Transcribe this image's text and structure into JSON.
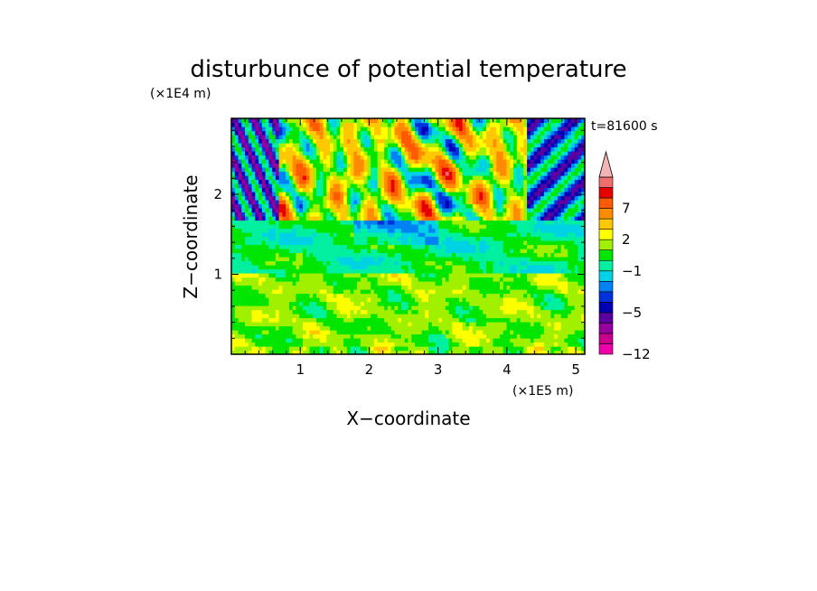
{
  "chart_data": {
    "type": "heatmap",
    "title": "disturbunce of potential temperature",
    "xlabel": "X−coordinate",
    "ylabel": "Z−coordinate",
    "x_scale_label": "(×1E5 m)",
    "y_scale_label": "(×1E4 m)",
    "time_label": "t=81600 s",
    "xlim": [
      0,
      5.13
    ],
    "ylim": [
      0,
      2.95
    ],
    "x_ticks": [
      1,
      2,
      3,
      4,
      5
    ],
    "x_tick_labels": [
      "1",
      "2",
      "3",
      "4",
      "5"
    ],
    "y_ticks": [
      1,
      2
    ],
    "y_tick_labels": [
      "1",
      "2"
    ],
    "colorbar": {
      "levels": [
        -12,
        -10,
        -8,
        -6,
        -5,
        -4,
        -3,
        -2,
        -1,
        0,
        1,
        2,
        3,
        5,
        7,
        9,
        11
      ],
      "tick_labels": [
        {
          "value": -12,
          "label": "−12"
        },
        {
          "value": -5,
          "label": "−5"
        },
        {
          "value": -1,
          "label": "−1"
        },
        {
          "value": 2,
          "label": "2"
        },
        {
          "value": 7,
          "label": "7"
        }
      ],
      "colors": [
        "#f000a8",
        "#c8008c",
        "#9600a0",
        "#5a00a0",
        "#0000b4",
        "#0032dc",
        "#0082f5",
        "#00d2e6",
        "#00f0a0",
        "#00e600",
        "#a0f000",
        "#ffff00",
        "#ffc800",
        "#ff8c00",
        "#ff5a00",
        "#e60000",
        "#f06e6e",
        "#f5b4b4"
      ],
      "extend_top": true
    },
    "field_description": {
      "upper_band_z": [
        1.7,
        2.95
      ],
      "upper_band_values": "strong positive and negative anomalies, -5 to 9",
      "middle_band_z": [
        1.0,
        1.7
      ],
      "middle_band_values": "-1 to 1",
      "lower_band_z": [
        0,
        1.0
      ],
      "lower_band_values": "1 to 3"
    }
  }
}
